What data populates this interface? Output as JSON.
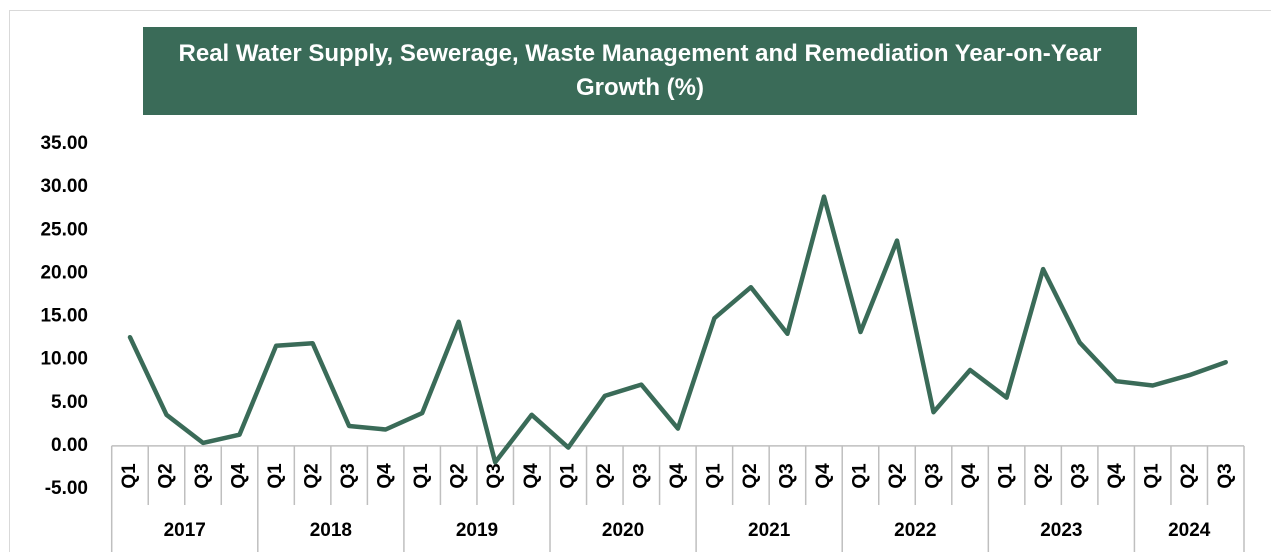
{
  "chart_data": {
    "type": "line",
    "title": "Real Water Supply, Sewerage, Waste Management and Remediation Year-on-Year Growth (%)",
    "groups": [
      {
        "name": "2017",
        "categories": [
          "Q1",
          "Q2",
          "Q3",
          "Q4"
        ]
      },
      {
        "name": "2018",
        "categories": [
          "Q1",
          "Q2",
          "Q3",
          "Q4"
        ]
      },
      {
        "name": "2019",
        "categories": [
          "Q1",
          "Q2",
          "Q3",
          "Q4"
        ]
      },
      {
        "name": "2020",
        "categories": [
          "Q1",
          "Q2",
          "Q3",
          "Q4"
        ]
      },
      {
        "name": "2021",
        "categories": [
          "Q1",
          "Q2",
          "Q3",
          "Q4"
        ]
      },
      {
        "name": "2022",
        "categories": [
          "Q1",
          "Q2",
          "Q3",
          "Q4"
        ]
      },
      {
        "name": "2023",
        "categories": [
          "Q1",
          "Q2",
          "Q3",
          "Q4"
        ]
      },
      {
        "name": "2024",
        "categories": [
          "Q1",
          "Q2",
          "Q3"
        ]
      }
    ],
    "values": [
      12.6,
      3.6,
      0.35,
      1.3,
      11.6,
      11.9,
      2.3,
      1.9,
      3.8,
      14.4,
      -1.9,
      3.6,
      -0.2,
      5.8,
      7.1,
      2.0,
      14.8,
      18.4,
      13.0,
      28.9,
      13.2,
      23.8,
      3.9,
      8.8,
      5.6,
      20.5,
      12.0,
      7.5,
      7.0,
      8.2,
      9.7
    ],
    "color": "#3a6b58",
    "ylim": [
      -5,
      35
    ],
    "yticks": [
      {
        "value": -5,
        "label": "-5.00"
      },
      {
        "value": 0,
        "label": "0.00"
      },
      {
        "value": 5,
        "label": "5.00"
      },
      {
        "value": 10,
        "label": "10.00"
      },
      {
        "value": 15,
        "label": "15.00"
      },
      {
        "value": 20,
        "label": "20.00"
      },
      {
        "value": 25,
        "label": "25.00"
      },
      {
        "value": 30,
        "label": "30.00"
      },
      {
        "value": 35,
        "label": "35.00"
      }
    ],
    "grid": false
  }
}
